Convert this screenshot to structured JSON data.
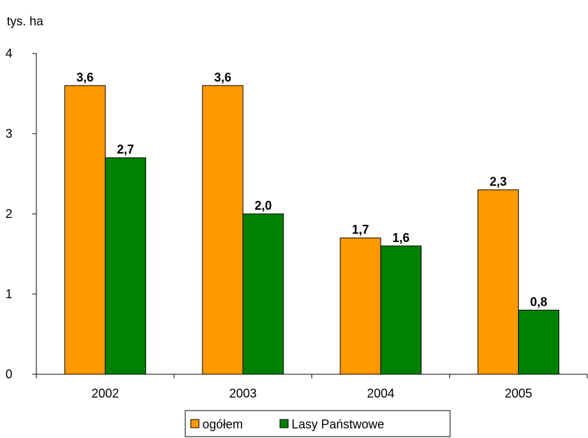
{
  "chart_data": {
    "type": "bar",
    "unit_label": "tys. ha",
    "categories": [
      "2002",
      "2003",
      "2004",
      "2005"
    ],
    "series": [
      {
        "name": "ogółem",
        "color": "#FF9900",
        "values": [
          3.6,
          3.6,
          1.7,
          2.3
        ],
        "labels": [
          "3,6",
          "3,6",
          "1,7",
          "2,3"
        ]
      },
      {
        "name": "Lasy Państwowe",
        "color": "#008000",
        "values": [
          2.7,
          2.0,
          1.6,
          0.8
        ],
        "labels": [
          "2,7",
          "2,0",
          "1,6",
          "0,8"
        ]
      }
    ],
    "ylim": [
      0,
      4
    ],
    "yticks": [
      "0",
      "1",
      "2",
      "3",
      "4"
    ],
    "grid": false,
    "legend_position": "bottom-center"
  }
}
